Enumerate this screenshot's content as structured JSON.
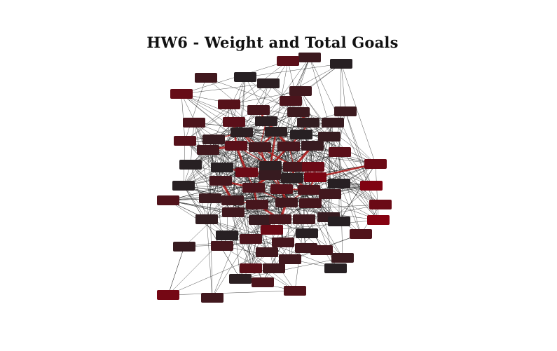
{
  "title": "HW6 - Weight and Total Goals",
  "colors": {
    "background": "#ffffff",
    "edge_thin": "#1a1a1a",
    "edge_heavy": "#b01212",
    "node_low": "#222224",
    "node_high": "#8a0010"
  }
}
